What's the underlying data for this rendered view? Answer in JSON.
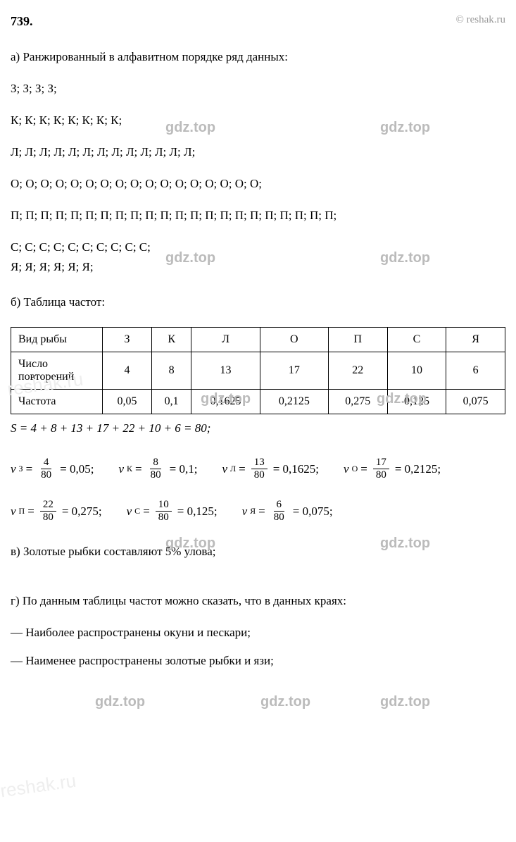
{
  "header": {
    "number": "739.",
    "copyright": "© reshak.ru"
  },
  "sections": {
    "a": {
      "title": "а) Ранжированный в алфавитном порядке ряд данных:",
      "lines": [
        "З;  З;  З;  З;",
        "К;  К;  К;  К;  К;  К;  К;  К;",
        "Л;  Л;  Л;  Л;  Л;  Л;  Л;  Л;  Л;  Л;  Л;  Л;  Л;",
        "О;  О;  О;  О;  О;  О;  О;  О;  О;  О;  О;  О;  О;  О;  О;  О;  О;",
        "П;  П;  П;  П;  П;  П;  П;  П;  П;  П;  П;  П;  П;  П;  П;  П;  П;  П;  П;  П;  П;  П;",
        "С;  С;  С;  С;  С;  С;  С;  С;  С;  С;",
        "Я;  Я;  Я;  Я;  Я;  Я;"
      ]
    },
    "b": {
      "title": "б) Таблица частот:",
      "table": {
        "row_headers": [
          "Вид рыбы",
          "Число повторений",
          "Частота"
        ],
        "columns": [
          "З",
          "К",
          "Л",
          "О",
          "П",
          "С",
          "Я"
        ],
        "counts": [
          "4",
          "8",
          "13",
          "17",
          "22",
          "10",
          "6"
        ],
        "freqs": [
          "0,05",
          "0,1",
          "0,1625",
          "0,2125",
          "0,275",
          "0,125",
          "0,075"
        ]
      },
      "sum_formula": "S = 4 + 8 + 13 + 17 + 22 + 10 + 6 = 80;",
      "calculations": [
        {
          "sub": "З",
          "num": "4",
          "den": "80",
          "result": "0,05;"
        },
        {
          "sub": "К",
          "num": "8",
          "den": "80",
          "result": "0,1;"
        },
        {
          "sub": "Л",
          "num": "13",
          "den": "80",
          "result": "0,1625;"
        },
        {
          "sub": "О",
          "num": "17",
          "den": "80",
          "result": "0,2125;"
        },
        {
          "sub": "П",
          "num": "22",
          "den": "80",
          "result": "0,275;"
        },
        {
          "sub": "С",
          "num": "10",
          "den": "80",
          "result": "0,125;"
        },
        {
          "sub": "Я",
          "num": "6",
          "den": "80",
          "result": "0,075;"
        }
      ]
    },
    "c": {
      "text": "в) Золотые рыбки составляют 5% улова;"
    },
    "d": {
      "intro": "г) По данным таблицы частот можно сказать, что в данных краях:",
      "items": [
        "— Наиболее распространены окуни и пескари;",
        "— Наименее распространены золотые рыбки и язи;"
      ]
    }
  },
  "watermarks": {
    "gdz": "gdz.top",
    "reshak": "reshak.ru"
  },
  "styling": {
    "background_color": "#ffffff",
    "text_color": "#000000",
    "watermark_color": "#bbbbbb",
    "faint_watermark_color": "#eeeeee",
    "copyright_color": "#999999",
    "border_color": "#000000",
    "body_font_size": 17,
    "header_font_size": 18,
    "table_font_size": 16,
    "watermark_font_size": 20
  }
}
